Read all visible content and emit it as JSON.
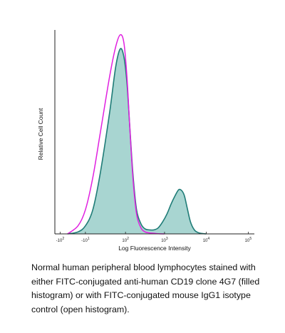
{
  "chart_data": {
    "type": "area",
    "title": "",
    "xlabel": "Log Fluorescence Intensity",
    "ylabel": "Relative Cell Count",
    "xscale": "biexponential",
    "x_ticks": [
      {
        "base": "-10",
        "exp": "2",
        "value": -100
      },
      {
        "base": "-10",
        "exp": "1",
        "value": -10
      },
      {
        "base": "10",
        "exp": "2",
        "value": 100
      },
      {
        "base": "10",
        "exp": "3",
        "value": 1000
      },
      {
        "base": "10",
        "exp": "4",
        "value": 10000
      },
      {
        "base": "10",
        "exp": "5",
        "value": 100000
      }
    ],
    "ylim": [
      0,
      1
    ],
    "grid": false,
    "series": [
      {
        "style": "filled",
        "fill_color": "#a8d5d1",
        "line_color": "#1f7c77",
        "x": [
          -60,
          -25,
          -10,
          0,
          10,
          30,
          50,
          70,
          90,
          110,
          130,
          160,
          200,
          260,
          330,
          420,
          550,
          700,
          900,
          1150,
          1450,
          1800,
          2200,
          2600,
          3000,
          3500,
          4200,
          5200,
          6500,
          8000,
          10000
        ],
        "y": [
          0,
          0.01,
          0.04,
          0.12,
          0.3,
          0.6,
          0.83,
          0.92,
          0.88,
          0.75,
          0.55,
          0.3,
          0.12,
          0.05,
          0.025,
          0.02,
          0.02,
          0.03,
          0.06,
          0.1,
          0.15,
          0.19,
          0.22,
          0.215,
          0.19,
          0.13,
          0.06,
          0.02,
          0.006,
          0.002,
          0
        ]
      },
      {
        "style": "open",
        "line_color": "#e020e0",
        "x": [
          -60,
          -25,
          -10,
          0,
          10,
          30,
          50,
          70,
          90,
          110,
          130,
          160,
          200,
          260,
          330,
          420,
          550,
          700,
          1000
        ],
        "y": [
          0,
          0.04,
          0.12,
          0.28,
          0.5,
          0.78,
          0.93,
          0.99,
          0.95,
          0.78,
          0.55,
          0.28,
          0.1,
          0.03,
          0.01,
          0.005,
          0.003,
          0.001,
          0
        ]
      }
    ]
  },
  "caption": "Normal human peripheral blood lymphocytes stained with either FITC-conjugated anti-human CD19 clone 4G7 (filled histogram) or with FITC-conjugated mouse IgG1 isotype control (open histogram)."
}
